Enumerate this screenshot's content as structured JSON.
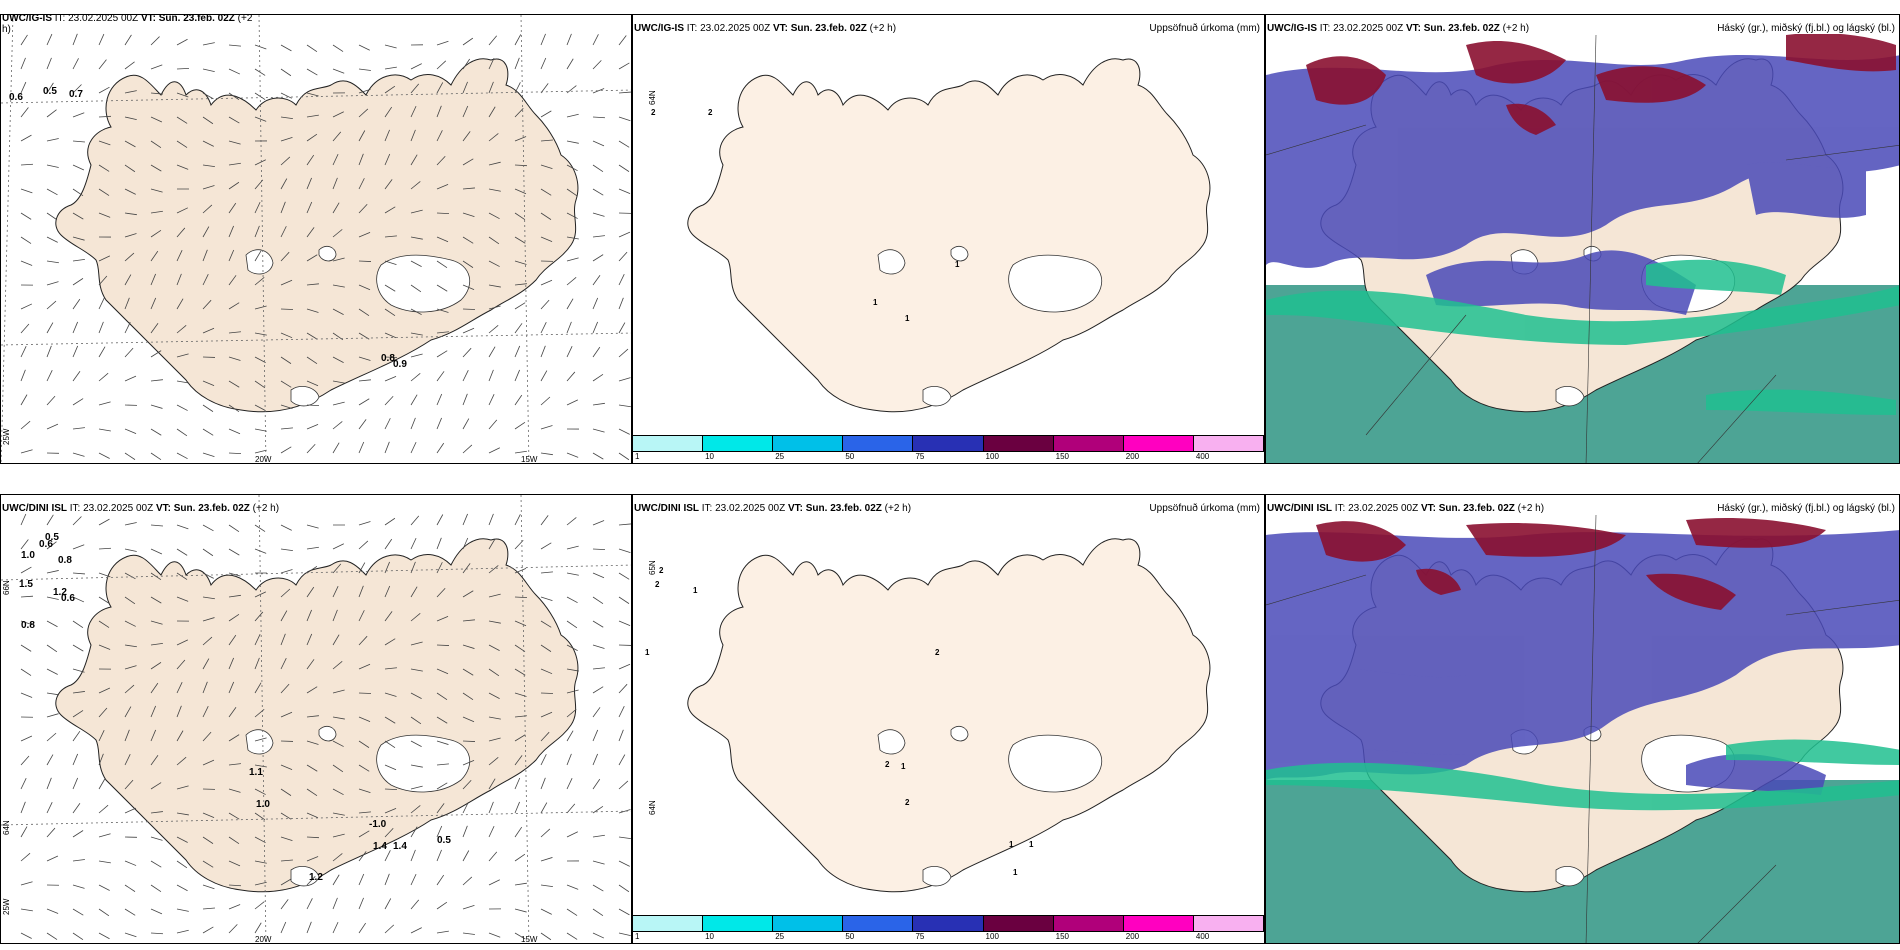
{
  "panels": {
    "p1": {
      "model": "UWC/IG-IS",
      "it_label": "IT:",
      "it": "23.02.2025 00Z",
      "vt_label": "VT:",
      "vt": "Sun. 23.feb. 02Z",
      "lead": "(+2",
      "lead2": "h)"
    },
    "p2": {
      "model": "UWC/IG-IS",
      "it_label": "IT:",
      "it": "23.02.2025 00Z",
      "vt_label": "VT:",
      "vt": "Sun. 23.feb. 02Z",
      "lead": "(+2 h)",
      "right": "Uppsöfnuð úrkoma (mm)"
    },
    "p3": {
      "model": "UWC/IG-IS",
      "it_label": "IT:",
      "it": "23.02.2025 00Z",
      "vt_label": "VT:",
      "vt": "Sun. 23.feb. 02Z",
      "lead": "(+2 h)",
      "right": "Háský (gr.), miðský (fj.bl.) og lágský (bl.)"
    },
    "p4": {
      "model": "UWC/DINI ISL",
      "it_label": "IT:",
      "it": "23.02.2025 00Z",
      "vt_label": "VT:",
      "vt": "Sun. 23.feb. 02Z",
      "lead": "(+2 h)"
    },
    "p5": {
      "model": "UWC/DINI ISL",
      "it_label": "IT:",
      "it": "23.02.2025 00Z",
      "vt_label": "VT:",
      "vt": "Sun. 23.feb. 02Z",
      "lead": "(+2 h)",
      "right": "Uppsöfnuð úrkoma (mm)"
    },
    "p6": {
      "model": "UWC/DINI ISL",
      "it_label": "IT:",
      "it": "23.02.2025 00Z",
      "vt_label": "VT:",
      "vt": "Sun. 23.feb. 02Z",
      "lead": "(+2 h)",
      "right": "Háský (gr.), miðský (fj.bl.) og lágský (bl.)"
    }
  },
  "axis_labels": {
    "lon1": "20W",
    "lon2": "15W",
    "lon3": "25W",
    "lat1": "65N",
    "lat2": "64N",
    "lat3": "66N"
  },
  "colorbar": {
    "ticks": [
      "1",
      "10",
      "25",
      "50",
      "75",
      "100",
      "150",
      "200",
      "400"
    ],
    "colors": [
      "#b8f6f6",
      "#00e8e8",
      "#00c0e8",
      "#2a64e8",
      "#2830b4",
      "#6a0040",
      "#b0007a",
      "#ff00c0",
      "#f8b0f0"
    ]
  },
  "p1_values": [
    "0.6",
    "0.5",
    "0.7",
    "0.8",
    "0.9"
  ],
  "p4_values": [
    "0.5",
    "0.6",
    "1.0",
    "0.8",
    "1.5",
    "1.2",
    "0.6",
    "0.8",
    "1.1",
    "1.0",
    "-1.0",
    "1.4",
    "1.4",
    "0.5",
    "1.2"
  ],
  "p2_values": [
    "2",
    "2",
    "1",
    "1",
    "1"
  ],
  "p5_values": [
    "2",
    "2",
    "1",
    "1",
    "2",
    "2",
    "1",
    "2",
    "1",
    "1",
    "1"
  ],
  "colors": {
    "land": "#f5e6d6",
    "land_light": "#fcf0e4",
    "precip_green": "#9ae89a",
    "precip_pink": "#c040c0",
    "cloud_high": "#8a1030",
    "cloud_mid": "#4a4ab8",
    "cloud_low": "#20c090",
    "sea": "#3a9a8a"
  }
}
